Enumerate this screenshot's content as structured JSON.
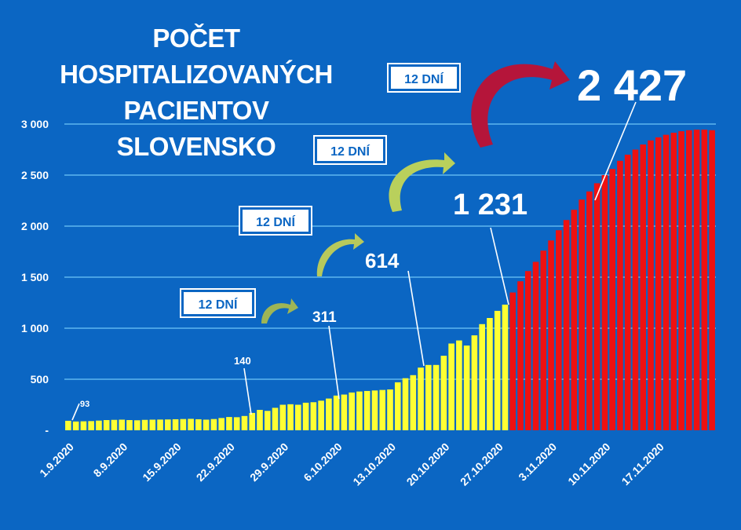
{
  "title_lines": [
    "POČET",
    "HOSPITALIZOVANÝCH",
    "PACIENTOV",
    "SLOVENSKO"
  ],
  "badges": [
    "12 DNÍ",
    "12 DNÍ",
    "12 DNÍ",
    "12 DNÍ"
  ],
  "colors": {
    "background": "#0b66c3",
    "yellow": "#ffff33",
    "red": "#ee1111",
    "grid": "#5eb6f0",
    "arrow_dark_red": "#b5153a",
    "arrow_green": "#a9c94a"
  },
  "chart_data": {
    "type": "bar",
    "title": "POČET HOSPITALIZOVANÝCH PACIENTOV SLOVENSKO",
    "ylim": [
      0,
      3000
    ],
    "y_ticks": [
      "-",
      "500",
      "1 000",
      "1 500",
      "2 000",
      "2 500",
      "3 000"
    ],
    "y_tick_values": [
      0,
      500,
      1000,
      1500,
      2000,
      2500,
      3000
    ],
    "grid": true,
    "x_tick_labels": [
      "1.9.2020",
      "8.9.2020",
      "15.9.2020",
      "22.9.2020",
      "29.9.2020",
      "6.10.2020",
      "13.10.2020",
      "20.10.2020",
      "27.10.2020",
      "3.11.2020",
      "10.11.2020",
      "17.11.2020"
    ],
    "series": [
      {
        "values": [
          93,
          86,
          88,
          90,
          95,
          100,
          102,
          104,
          100,
          98,
          102,
          104,
          105,
          106,
          108,
          110,
          112,
          108,
          104,
          110,
          120,
          130,
          128,
          140,
          170,
          200,
          190,
          220,
          250,
          255,
          250,
          270,
          275,
          290,
          311,
          340,
          350,
          370,
          380,
          385,
          390,
          395,
          400,
          470,
          510,
          540,
          614,
          640,
          640,
          730,
          850,
          880,
          830,
          930,
          1040,
          1100,
          1170,
          1231
        ]
      },
      {
        "values": [
          1350,
          1460,
          1560,
          1650,
          1760,
          1860,
          1960,
          2060,
          2160,
          2260,
          2340,
          2420,
          2500,
          2560,
          2640,
          2700,
          2750,
          2800,
          2840,
          2870,
          2895,
          2915,
          2930,
          2940,
          2945,
          2945,
          2940
        ]
      }
    ],
    "annotations": [
      "93",
      "140",
      "311",
      "614",
      "1 231",
      "2 427"
    ]
  }
}
